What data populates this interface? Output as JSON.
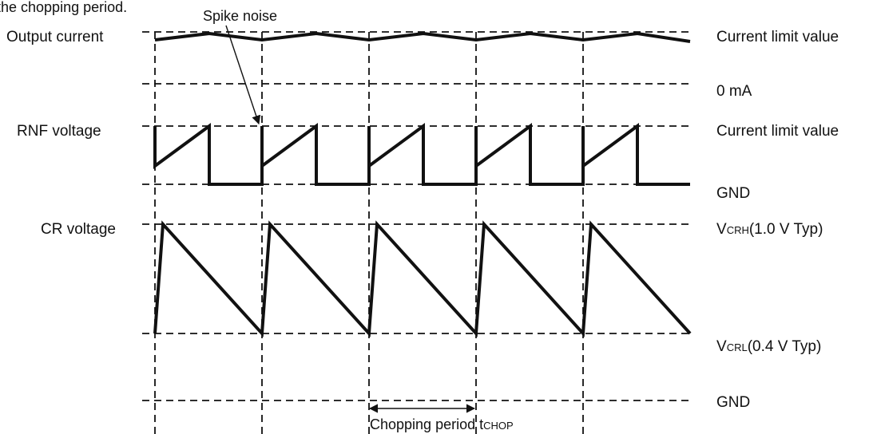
{
  "header_text": "the chopping period.",
  "annotation": {
    "label": "Spike  noise"
  },
  "left_labels": {
    "output_current": "Output  current",
    "rnf_voltage": "RNF voltage",
    "cr_voltage": "CR voltage"
  },
  "right_labels": {
    "current_limit_1": "Current limit value",
    "zero_ma": "0 mA",
    "current_limit_2": "Current limit value",
    "gnd_1": "GND",
    "vcrh": {
      "main": "V",
      "sub": "CRH",
      "rest": "(1.0 V Typ)"
    },
    "vcrl": {
      "main": "V",
      "sub": "CRL",
      "rest": "(0.4 V Typ)"
    },
    "gnd_2": "GND"
  },
  "chopping_period": {
    "text": "Chopping period t",
    "sub": "CHOP"
  },
  "chopping_cycles": 5
}
